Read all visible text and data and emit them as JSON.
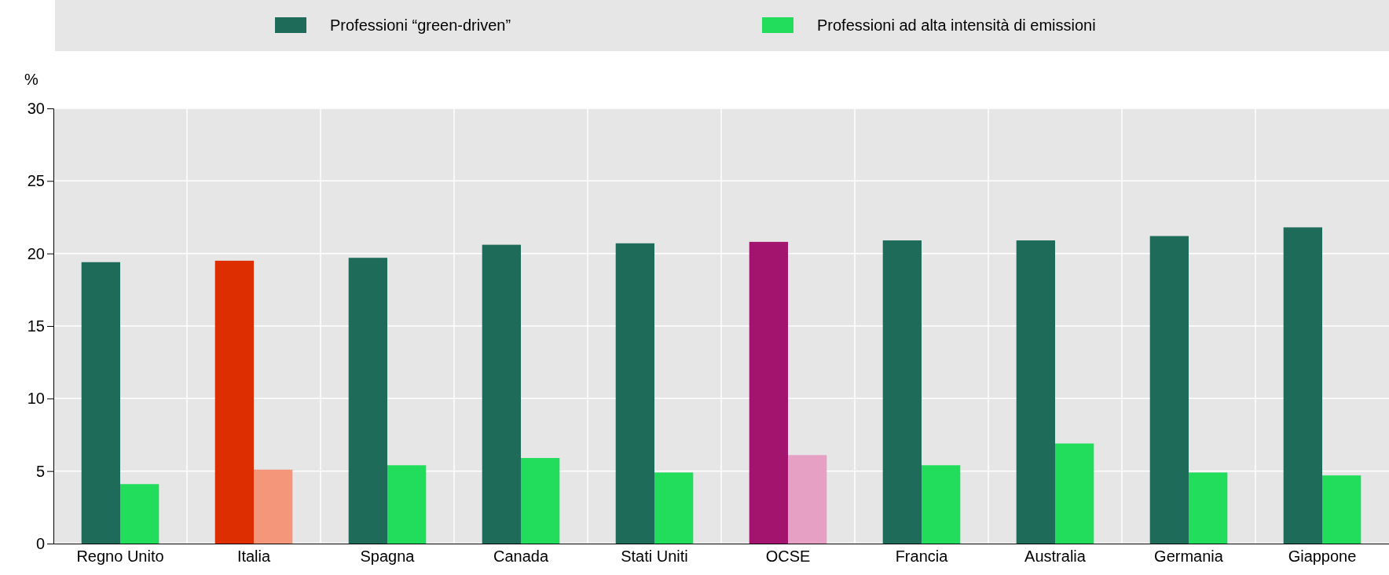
{
  "chart_data": {
    "type": "bar",
    "ylabel": "%",
    "categories": [
      "Regno Unito",
      "Italia",
      "Spagna",
      "Canada",
      "Stati Uniti",
      "OCSE",
      "Francia",
      "Australia",
      "Germania",
      "Giappone"
    ],
    "series": [
      {
        "name": "Professioni “green-driven”",
        "color": "#1e6b5a",
        "colors": [
          "#1e6b5a",
          "#dc2e00",
          "#1e6b5a",
          "#1e6b5a",
          "#1e6b5a",
          "#a3146e",
          "#1e6b5a",
          "#1e6b5a",
          "#1e6b5a",
          "#1e6b5a"
        ],
        "values": [
          19.4,
          19.5,
          19.7,
          20.6,
          20.7,
          20.8,
          20.9,
          20.9,
          21.2,
          21.8
        ]
      },
      {
        "name": "Professioni ad alta intensità di emissioni",
        "color": "#22dd5c",
        "colors": [
          "#22dd5c",
          "#f4967a",
          "#22dd5c",
          "#22dd5c",
          "#22dd5c",
          "#e6a0c4",
          "#22dd5c",
          "#22dd5c",
          "#22dd5c",
          "#22dd5c"
        ],
        "values": [
          4.1,
          5.1,
          5.4,
          5.9,
          4.9,
          6.1,
          5.4,
          6.9,
          4.9,
          4.7
        ]
      }
    ],
    "ylim": [
      0,
      30
    ],
    "yticks": [
      0,
      5,
      10,
      15,
      20,
      25,
      30
    ],
    "grid": true,
    "legend": "top"
  }
}
